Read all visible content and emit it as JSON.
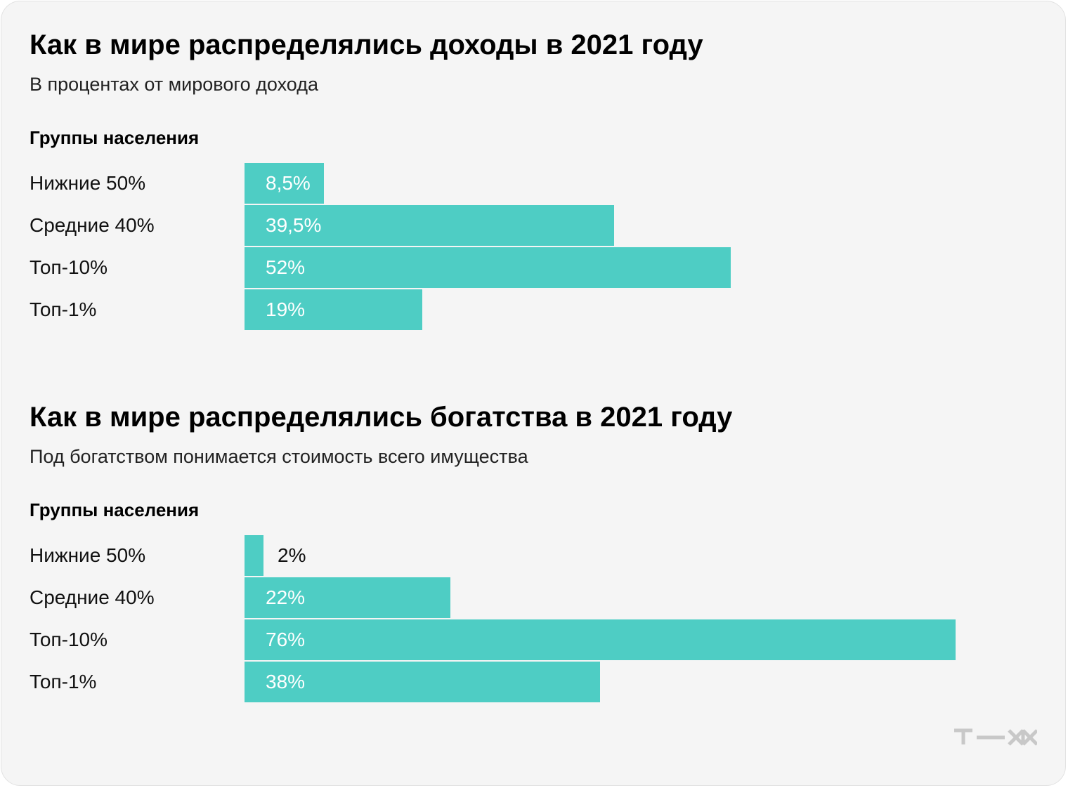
{
  "chart_data": [
    {
      "type": "bar",
      "orientation": "horizontal",
      "title": "Как в мире распределялись доходы в 2021 году",
      "subtitle": "В процентах от мирового дохода",
      "axis_label": "Группы населения",
      "categories": [
        "Нижние 50%",
        "Средние 40%",
        "Топ-10%",
        "Топ-1%"
      ],
      "values": [
        8.5,
        39.5,
        52,
        19
      ],
      "value_labels": [
        "8,5%",
        "39,5%",
        "52%",
        "19%"
      ],
      "xlim": [
        0,
        76
      ],
      "grid": false,
      "bar_color": "#4ecdc4"
    },
    {
      "type": "bar",
      "orientation": "horizontal",
      "title": "Как в мире распределялись богатства в 2021 году",
      "subtitle": "Под богатством понимается стоимость всего имущества",
      "axis_label": "Группы населения",
      "categories": [
        "Нижние 50%",
        "Средние 40%",
        "Топ-10%",
        "Топ-1%"
      ],
      "values": [
        2,
        22,
        76,
        38
      ],
      "value_labels": [
        "2%",
        "22%",
        "76%",
        "38%"
      ],
      "xlim": [
        0,
        76
      ],
      "grid": false,
      "bar_color": "#4ecdc4"
    }
  ],
  "colors": {
    "background": "#f5f5f5",
    "bar": "#4ecdc4",
    "logo": "#c8c8c8"
  },
  "brand": {
    "logo_icon": "tzh-logo-icon"
  }
}
